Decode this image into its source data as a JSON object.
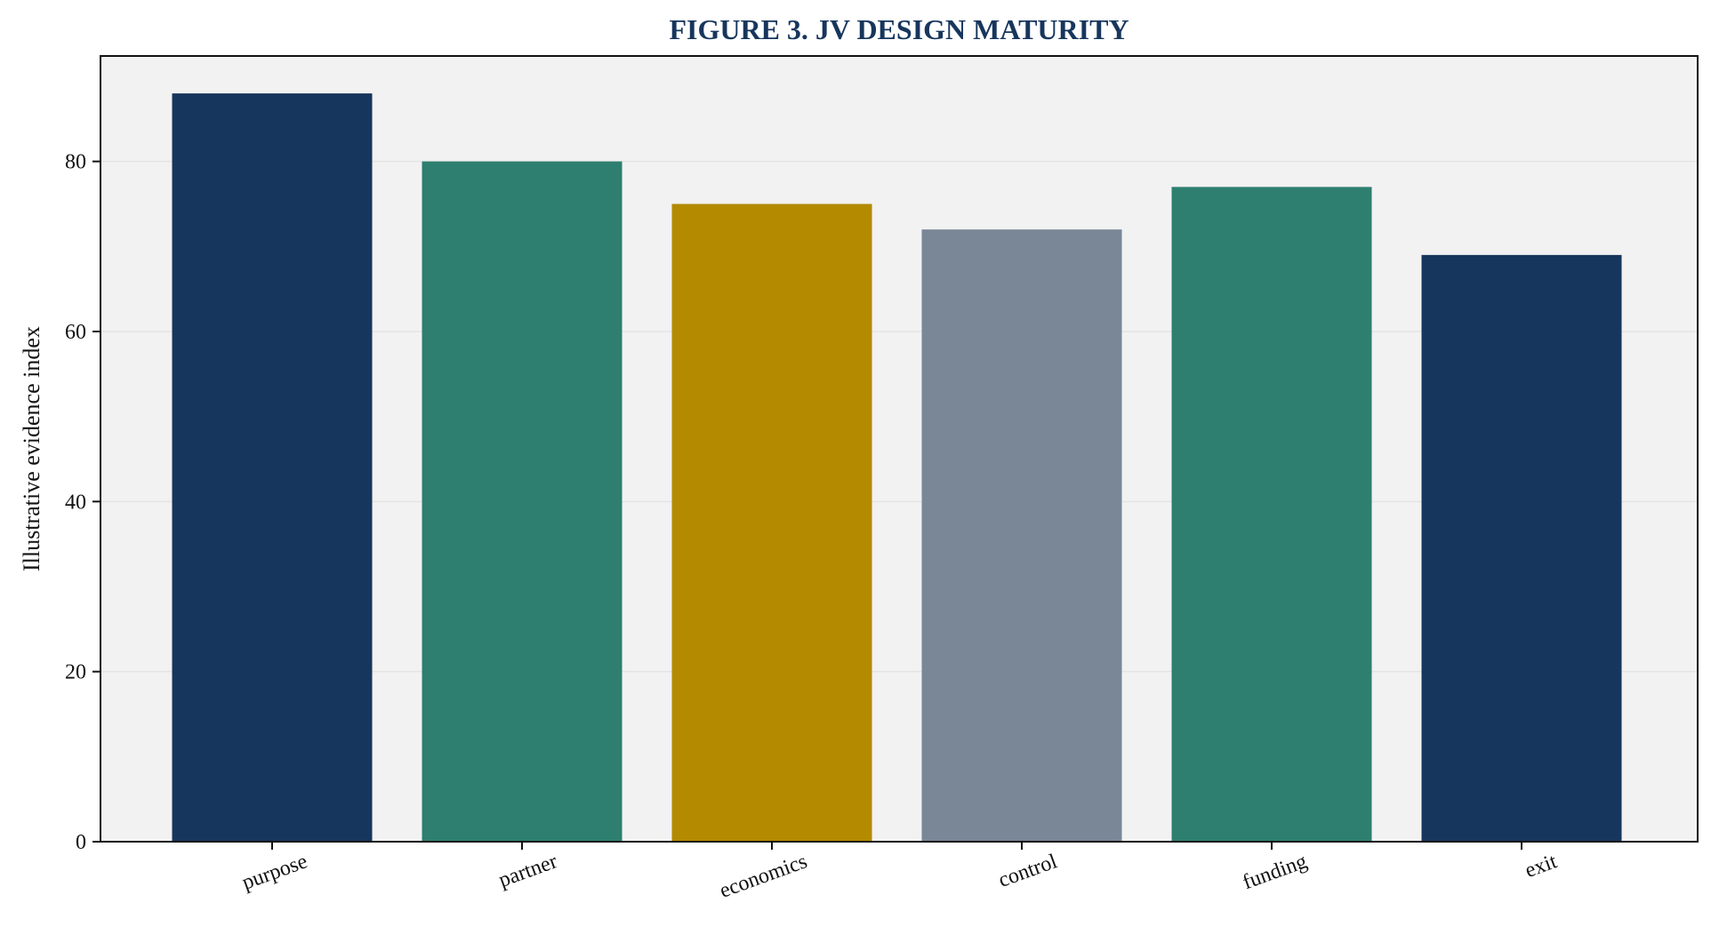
{
  "chart_data": {
    "type": "bar",
    "title": "FIGURE 3. JV DESIGN MATURITY",
    "xlabel": "",
    "ylabel": "Illustrative evidence index",
    "categories": [
      "purpose",
      "partner",
      "economics",
      "control",
      "funding",
      "exit"
    ],
    "values": [
      88,
      80,
      75,
      72,
      77,
      69
    ],
    "bar_colors": [
      "#17365d",
      "#2e7f6f",
      "#b38a00",
      "#7a8797",
      "#2e7f6f",
      "#17365d"
    ],
    "ylim": [
      0,
      92.4
    ],
    "yticks": [
      0,
      20,
      40,
      60,
      80
    ],
    "grid": "y",
    "legend": "none",
    "colors": {
      "title": "#17365d",
      "plot_background": "#f2f2f2",
      "grid": "#e4e4e4",
      "axis": "#111111"
    }
  }
}
